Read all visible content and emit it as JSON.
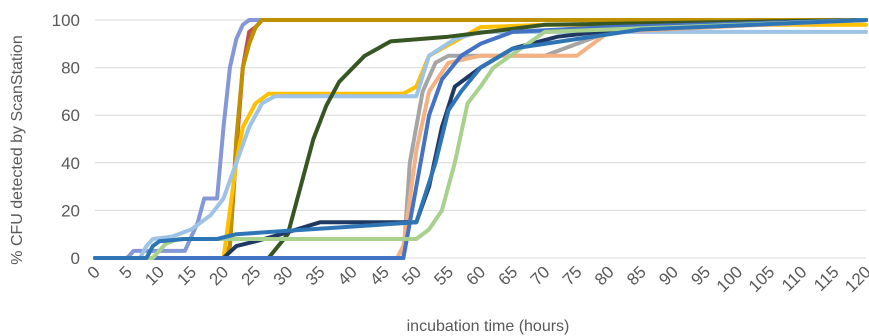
{
  "chart_data": {
    "type": "line",
    "title": "",
    "xlabel": "incubation time (hours)",
    "ylabel": "% CFU detected by ScanStation",
    "xlim": [
      0,
      120
    ],
    "ylim": [
      0,
      100
    ],
    "x_ticks": [
      "0",
      "5",
      "10",
      "15",
      "20",
      "25",
      "30",
      "35",
      "40",
      "45",
      "50",
      "55",
      "60",
      "65",
      "70",
      "75",
      "80",
      "85",
      "90",
      "95",
      "100",
      "105",
      "110",
      "115",
      "120"
    ],
    "y_ticks": [
      "0",
      "20",
      "40",
      "60",
      "80",
      "100"
    ],
    "grid": true,
    "legend": "none",
    "series": [
      {
        "color": "#8497d6",
        "points": [
          [
            0,
            0
          ],
          [
            5,
            0
          ],
          [
            6,
            3
          ],
          [
            14,
            3
          ],
          [
            16,
            15
          ],
          [
            17,
            25
          ],
          [
            19,
            25
          ],
          [
            20,
            55
          ],
          [
            21,
            80
          ],
          [
            22,
            92
          ],
          [
            23,
            98
          ],
          [
            24,
            100
          ],
          [
            120,
            100
          ]
        ]
      },
      {
        "color": "#c0504d",
        "points": [
          [
            0,
            0
          ],
          [
            20,
            0
          ],
          [
            21,
            5
          ],
          [
            22,
            45
          ],
          [
            23,
            80
          ],
          [
            24,
            95
          ],
          [
            25,
            97
          ],
          [
            26,
            100
          ],
          [
            120,
            100
          ]
        ]
      },
      {
        "color": "#bf9000",
        "points": [
          [
            0,
            0
          ],
          [
            20,
            0
          ],
          [
            21,
            5
          ],
          [
            22,
            50
          ],
          [
            23,
            80
          ],
          [
            24,
            90
          ],
          [
            25,
            97
          ],
          [
            26,
            100
          ],
          [
            120,
            100
          ]
        ]
      },
      {
        "color": "#ffc000",
        "points": [
          [
            0,
            0
          ],
          [
            20,
            0
          ],
          [
            22,
            40
          ],
          [
            23,
            55
          ],
          [
            25,
            65
          ],
          [
            27,
            69
          ],
          [
            48,
            69
          ],
          [
            50,
            72
          ],
          [
            52,
            85
          ],
          [
            60,
            97
          ],
          [
            70,
            98
          ],
          [
            120,
            98
          ]
        ]
      },
      {
        "color": "#9dc3e6",
        "points": [
          [
            0,
            0
          ],
          [
            7,
            0
          ],
          [
            8,
            5
          ],
          [
            9,
            8
          ],
          [
            12,
            9
          ],
          [
            15,
            12
          ],
          [
            18,
            18
          ],
          [
            20,
            25
          ],
          [
            22,
            40
          ],
          [
            24,
            55
          ],
          [
            26,
            65
          ],
          [
            28,
            68
          ],
          [
            50,
            68
          ],
          [
            52,
            85
          ],
          [
            56,
            92
          ],
          [
            60,
            95
          ],
          [
            120,
            95
          ]
        ]
      },
      {
        "color": "#375623",
        "points": [
          [
            0,
            0
          ],
          [
            27,
            0
          ],
          [
            30,
            10
          ],
          [
            32,
            30
          ],
          [
            34,
            50
          ],
          [
            36,
            64
          ],
          [
            38,
            74
          ],
          [
            42,
            85
          ],
          [
            46,
            91
          ],
          [
            55,
            93
          ],
          [
            70,
            98
          ],
          [
            120,
            100
          ]
        ]
      },
      {
        "color": "#a5a5a5",
        "points": [
          [
            0,
            0
          ],
          [
            48,
            0
          ],
          [
            49,
            40
          ],
          [
            51,
            70
          ],
          [
            53,
            82
          ],
          [
            55,
            85
          ],
          [
            70,
            85
          ],
          [
            80,
            95
          ],
          [
            120,
            100
          ]
        ]
      },
      {
        "color": "#f4b183",
        "points": [
          [
            0,
            0
          ],
          [
            47,
            0
          ],
          [
            48,
            5
          ],
          [
            50,
            45
          ],
          [
            52,
            70
          ],
          [
            55,
            82
          ],
          [
            60,
            85
          ],
          [
            75,
            85
          ],
          [
            80,
            95
          ],
          [
            120,
            100
          ]
        ]
      },
      {
        "color": "#203864",
        "points": [
          [
            0,
            0
          ],
          [
            20,
            0
          ],
          [
            22,
            5
          ],
          [
            25,
            7
          ],
          [
            29,
            10
          ],
          [
            35,
            15
          ],
          [
            50,
            15
          ],
          [
            52,
            30
          ],
          [
            54,
            55
          ],
          [
            56,
            72
          ],
          [
            60,
            80
          ],
          [
            65,
            88
          ],
          [
            72,
            93
          ],
          [
            85,
            97
          ],
          [
            120,
            100
          ]
        ]
      },
      {
        "color": "#4472c4",
        "points": [
          [
            0,
            0
          ],
          [
            48,
            0
          ],
          [
            50,
            30
          ],
          [
            52,
            60
          ],
          [
            54,
            75
          ],
          [
            57,
            85
          ],
          [
            60,
            90
          ],
          [
            65,
            95
          ],
          [
            80,
            97
          ],
          [
            120,
            100
          ]
        ]
      },
      {
        "color": "#a9d18e",
        "points": [
          [
            0,
            0
          ],
          [
            9,
            0
          ],
          [
            11,
            6
          ],
          [
            13,
            8
          ],
          [
            45,
            8
          ],
          [
            50,
            8
          ],
          [
            52,
            12
          ],
          [
            54,
            20
          ],
          [
            56,
            40
          ],
          [
            58,
            65
          ],
          [
            60,
            72
          ],
          [
            62,
            80
          ],
          [
            70,
            95
          ],
          [
            120,
            100
          ]
        ]
      },
      {
        "color": "#2e75b6",
        "points": [
          [
            0,
            0
          ],
          [
            8,
            0
          ],
          [
            9,
            5
          ],
          [
            10,
            7
          ],
          [
            14,
            8
          ],
          [
            19,
            8
          ],
          [
            22,
            10
          ],
          [
            50,
            15
          ],
          [
            53,
            40
          ],
          [
            55,
            62
          ],
          [
            57,
            70
          ],
          [
            60,
            80
          ],
          [
            65,
            88
          ],
          [
            75,
            92
          ],
          [
            85,
            96
          ],
          [
            120,
            100
          ]
        ]
      }
    ]
  }
}
